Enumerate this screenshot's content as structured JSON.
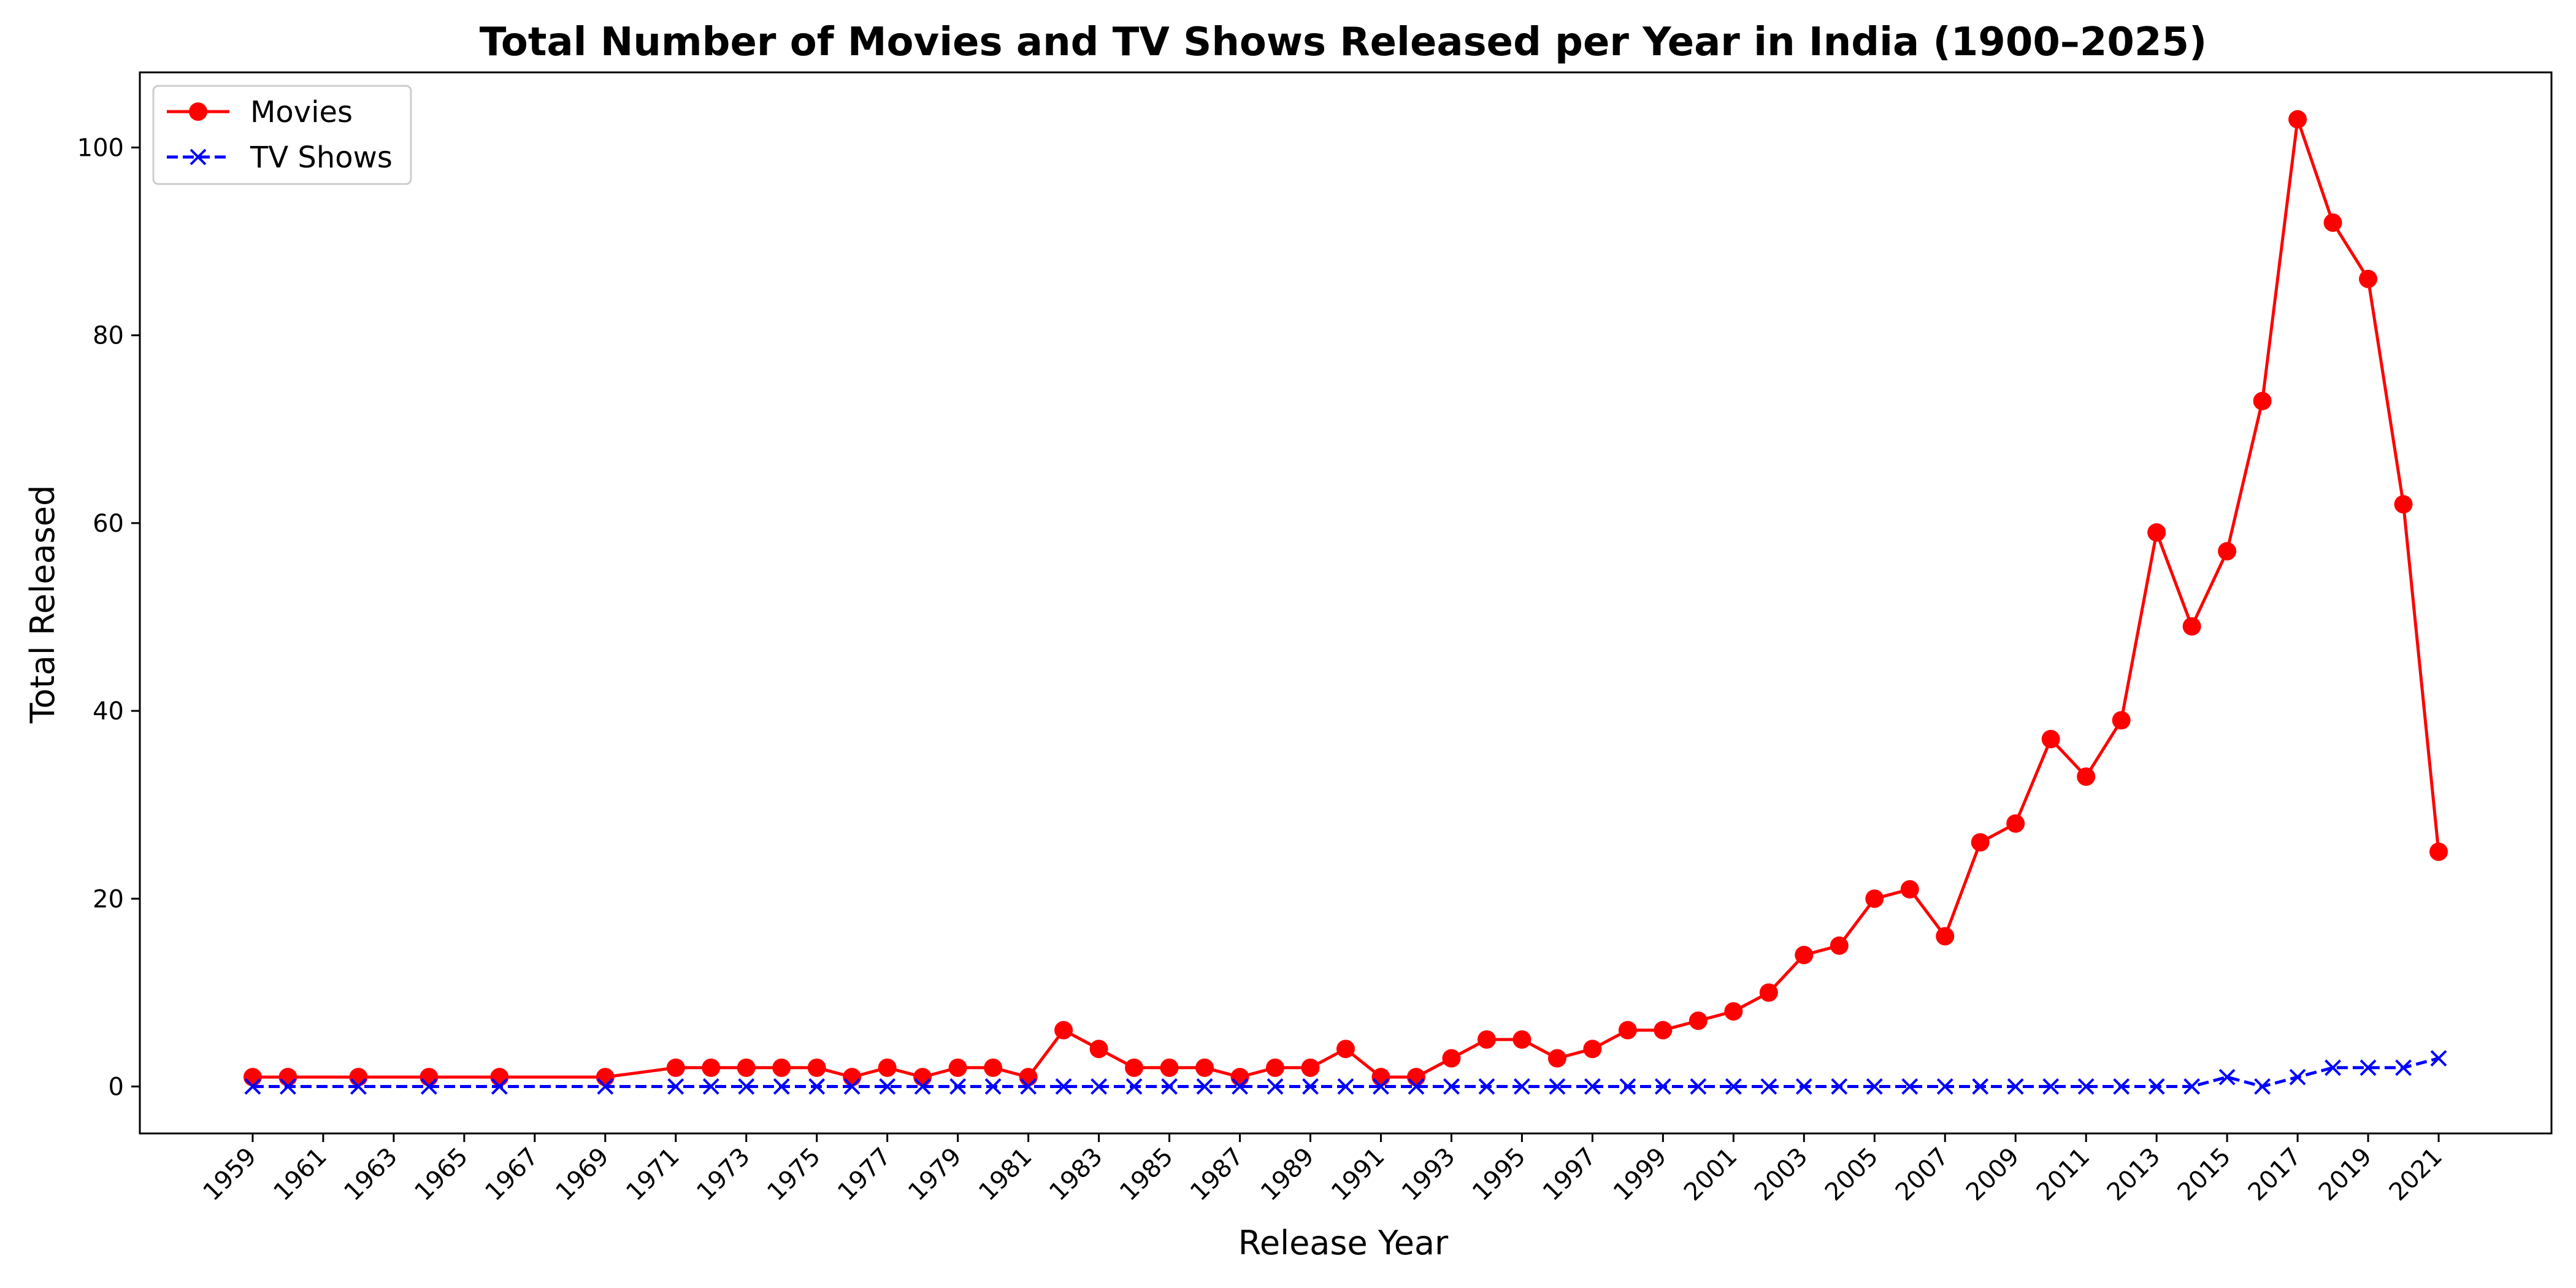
{
  "chart_data": {
    "type": "line",
    "title": "Total Number of Movies and TV Shows Released per Year in India (1900–2025)",
    "xlabel": "Release Year",
    "ylabel": "Total Released",
    "xlim": [
      1955.8,
      2024.2
    ],
    "ylim": [
      -5,
      108
    ],
    "x_tick_labels": [
      "1959",
      "1961",
      "1963",
      "1965",
      "1967",
      "1969",
      "1971",
      "1973",
      "1975",
      "1977",
      "1979",
      "1981",
      "1983",
      "1985",
      "1987",
      "1989",
      "1991",
      "1993",
      "1995",
      "1997",
      "1999",
      "2001",
      "2003",
      "2005",
      "2007",
      "2009",
      "2011",
      "2013",
      "2015",
      "2017",
      "2019",
      "2021"
    ],
    "y_ticks": [
      0,
      20,
      40,
      60,
      80,
      100
    ],
    "grid": false,
    "legend_position": "top-left",
    "series": [
      {
        "name": "Movies",
        "color": "#ff0000",
        "line_style": "solid",
        "marker": "circle",
        "x": [
          1959,
          1960,
          1962,
          1964,
          1966,
          1969,
          1971,
          1972,
          1973,
          1974,
          1975,
          1976,
          1977,
          1978,
          1979,
          1980,
          1981,
          1982,
          1983,
          1984,
          1985,
          1986,
          1987,
          1988,
          1989,
          1990,
          1991,
          1992,
          1993,
          1994,
          1995,
          1996,
          1997,
          1998,
          1999,
          2000,
          2001,
          2002,
          2003,
          2004,
          2005,
          2006,
          2007,
          2008,
          2009,
          2010,
          2011,
          2012,
          2013,
          2014,
          2015,
          2016,
          2017,
          2018,
          2019,
          2020,
          2021
        ],
        "y": [
          1,
          1,
          1,
          1,
          1,
          1,
          2,
          2,
          2,
          2,
          2,
          1,
          2,
          1,
          2,
          2,
          1,
          6,
          4,
          2,
          2,
          2,
          1,
          2,
          2,
          4,
          1,
          1,
          3,
          5,
          5,
          3,
          4,
          6,
          6,
          7,
          8,
          10,
          14,
          15,
          20,
          21,
          16,
          26,
          28,
          37,
          33,
          39,
          59,
          49,
          57,
          73,
          103,
          92,
          86,
          62,
          25
        ]
      },
      {
        "name": "TV Shows",
        "color": "#0000ff",
        "line_style": "dashed",
        "marker": "x",
        "x": [
          1959,
          1960,
          1962,
          1964,
          1966,
          1969,
          1971,
          1972,
          1973,
          1974,
          1975,
          1976,
          1977,
          1978,
          1979,
          1980,
          1981,
          1982,
          1983,
          1984,
          1985,
          1986,
          1987,
          1988,
          1989,
          1990,
          1991,
          1992,
          1993,
          1994,
          1995,
          1996,
          1997,
          1998,
          1999,
          2000,
          2001,
          2002,
          2003,
          2004,
          2005,
          2006,
          2007,
          2008,
          2009,
          2010,
          2011,
          2012,
          2013,
          2014,
          2015,
          2016,
          2017,
          2018,
          2019,
          2020,
          2021
        ],
        "y": [
          0,
          0,
          0,
          0,
          0,
          0,
          0,
          0,
          0,
          0,
          0,
          0,
          0,
          0,
          0,
          0,
          0,
          0,
          0,
          0,
          0,
          0,
          0,
          0,
          0,
          0,
          0,
          0,
          0,
          0,
          0,
          0,
          0,
          0,
          0,
          0,
          0,
          0,
          0,
          0,
          0,
          0,
          0,
          0,
          0,
          0,
          0,
          0,
          0,
          0,
          1,
          0,
          1,
          2,
          2,
          2,
          3
        ]
      }
    ]
  }
}
